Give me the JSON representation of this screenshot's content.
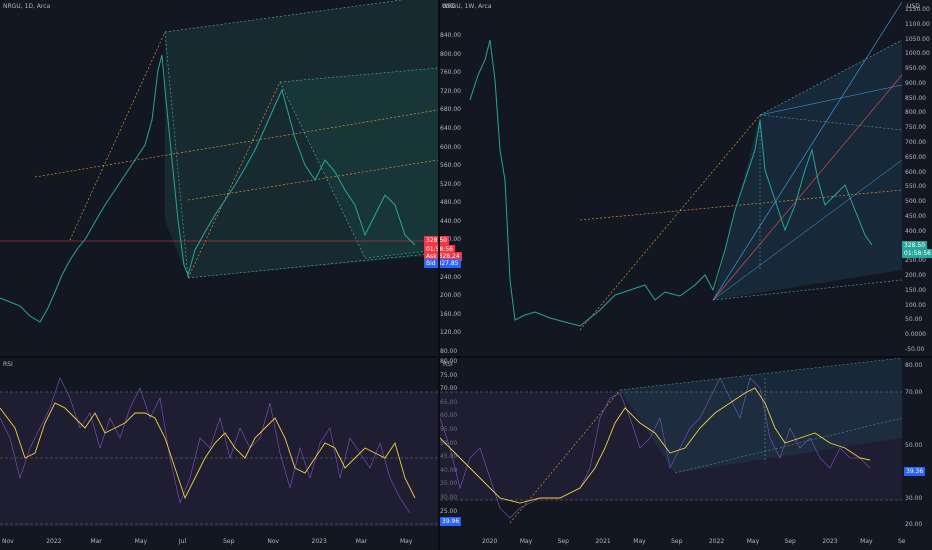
{
  "left_chart": {
    "title": "NRGU, 1D, Arca",
    "currency": "USD",
    "price_ticks": [
      "840.00",
      "800.00",
      "760.00",
      "720.00",
      "680.00",
      "640.00",
      "600.00",
      "560.00",
      "520.00",
      "480.00",
      "440.00",
      "400.00",
      "360.00",
      "240.00",
      "200.00",
      "160.00",
      "120.00",
      "80.00"
    ],
    "last_price": "328.50",
    "countdown": "01:58:56",
    "ask_label": "Ask",
    "ask": "328.24",
    "bid_label": "Bid",
    "bid": "327.85",
    "time_ticks": [
      "Nov",
      "2022",
      "Mar",
      "May",
      "Jul",
      "Sep",
      "Nov",
      "2023",
      "Mar",
      "May"
    ],
    "colors": {
      "price_tag": "#f23645",
      "ask": "#f23645",
      "bid": "#2962ff",
      "up": "#26a69a",
      "down": "#ef5350"
    }
  },
  "left_rsi": {
    "title": "RSI",
    "ticks": [
      "80.00",
      "75.00",
      "70.00",
      "65.00",
      "60.00",
      "55.00",
      "50.00",
      "45.00",
      "40.00",
      "35.00",
      "30.00",
      "25.00"
    ],
    "value": "39.96",
    "colors": {
      "value_tag": "#2962ff"
    }
  },
  "right_chart": {
    "title": "NRGU, 1W, Arca",
    "currency": "USD",
    "price_ticks": [
      "1150.00",
      "1100.00",
      "1050.00",
      "1000.00",
      "950.00",
      "900.00",
      "850.00",
      "800.00",
      "750.00",
      "700.00",
      "650.00",
      "600.00",
      "550.00",
      "500.00",
      "450.00",
      "400.00",
      "350.00",
      "250.00",
      "200.00",
      "150.00",
      "100.00",
      "50.00",
      "0.0000",
      "-50.00"
    ],
    "last_price": "328.50",
    "countdown": "01:58:56",
    "time_ticks": [
      "2020",
      "May",
      "Sep",
      "2021",
      "May",
      "Sep",
      "2022",
      "May",
      "Sep",
      "2023",
      "May",
      "Se"
    ],
    "colors": {
      "price_tag": "#26a69a"
    }
  },
  "right_rsi": {
    "title": "RSI",
    "ticks": [
      "80.00",
      "70.00",
      "50.00",
      "40.00",
      "30.00",
      "20.00"
    ],
    "value": "39.36",
    "colors": {
      "value_tag": "#2962ff"
    }
  }
}
